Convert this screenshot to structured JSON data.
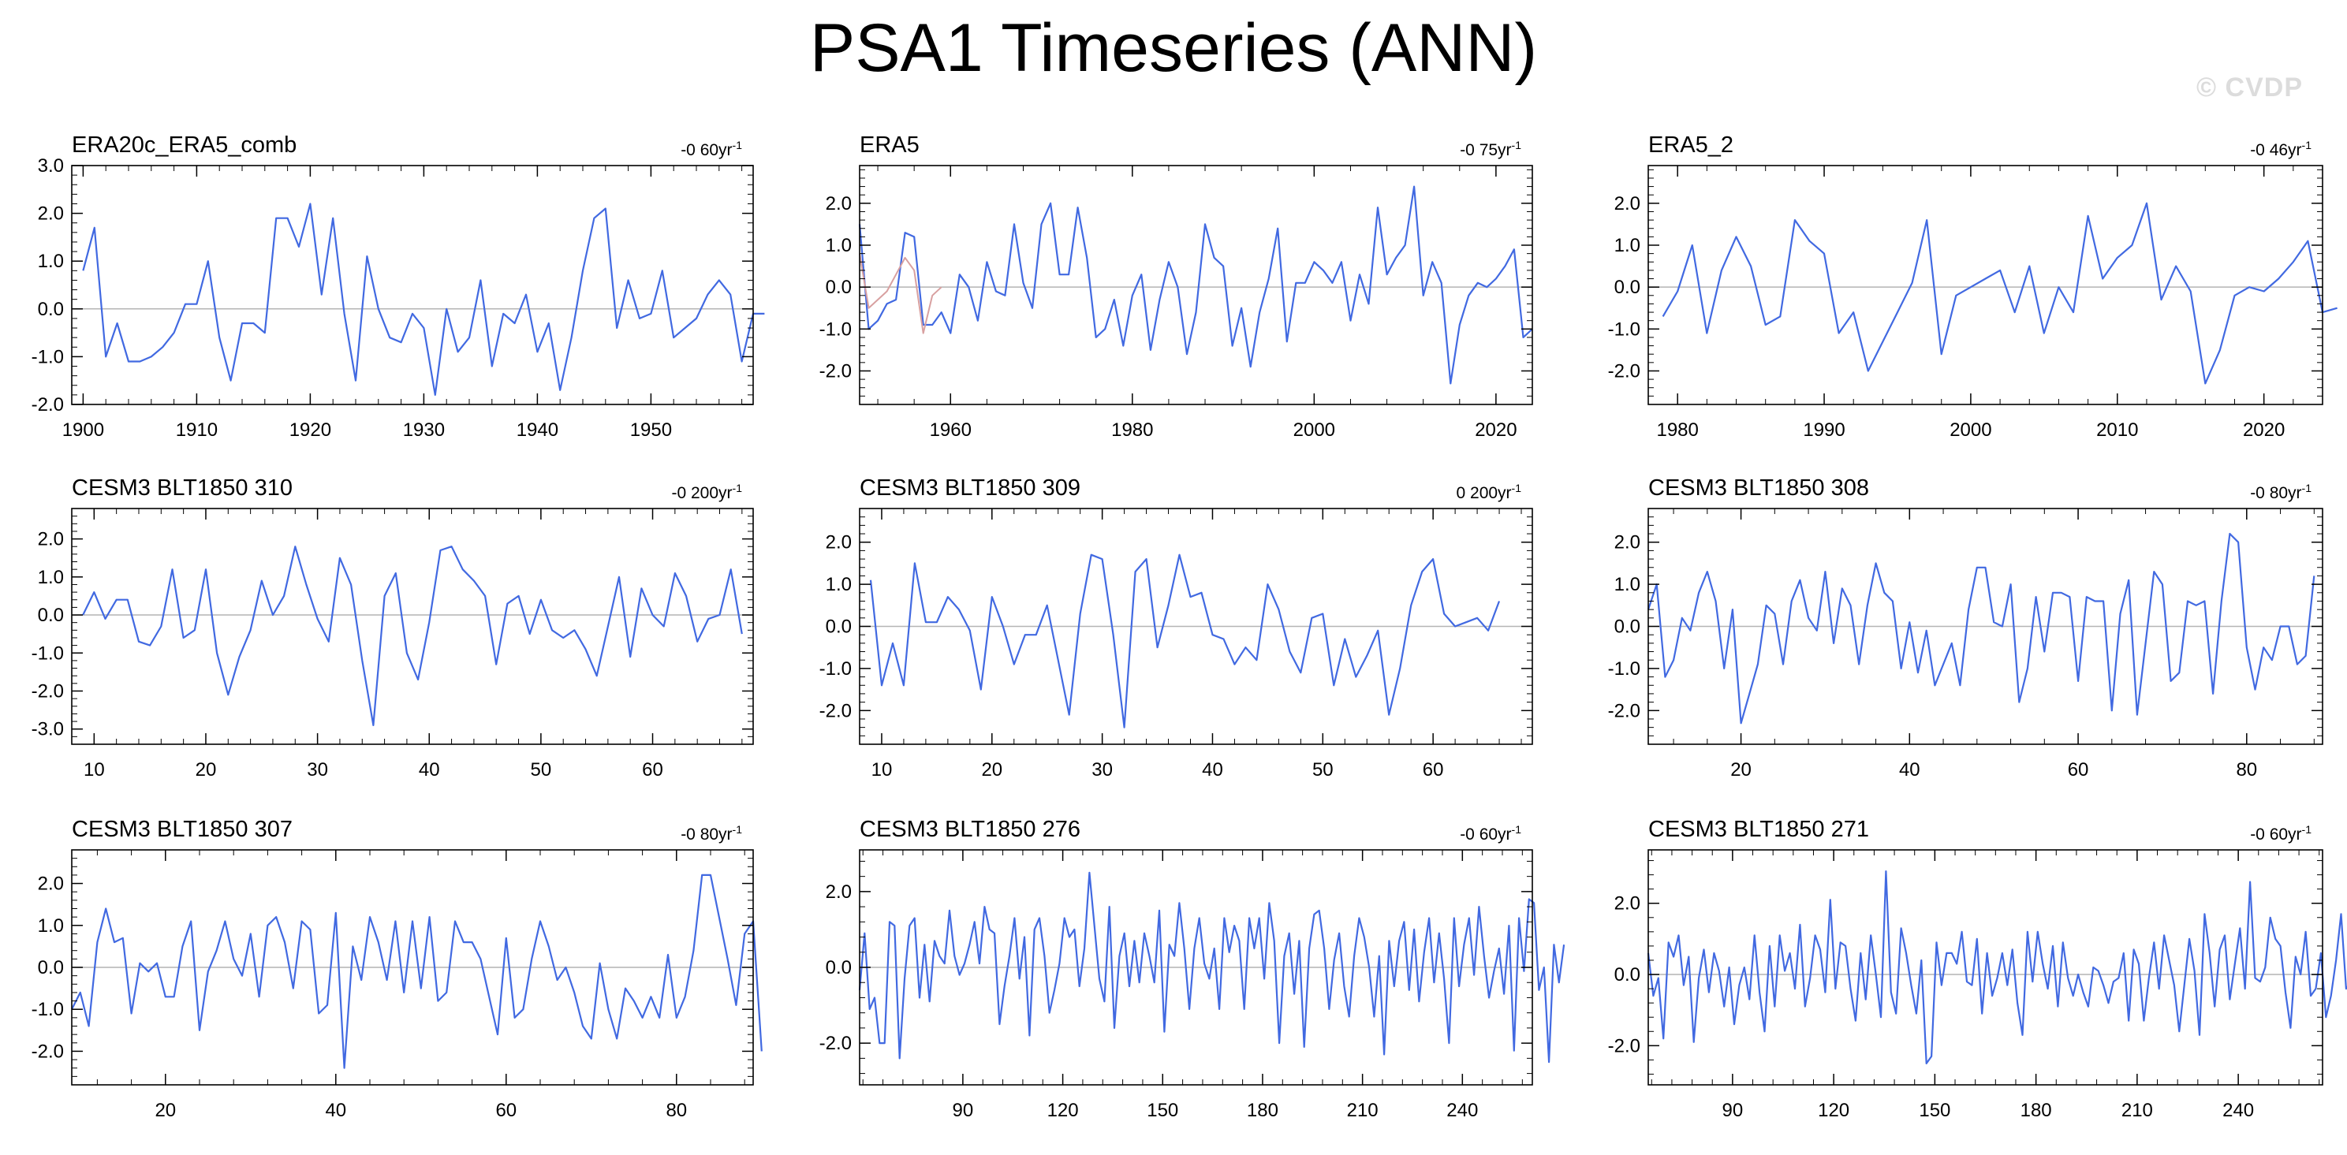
{
  "title": "PSA1 Timeseries (ANN)",
  "watermark": "© CVDP",
  "colors": {
    "series": "#4169e1",
    "observed_alt": "#d8a0a0",
    "zero_line": "#b4b4b4",
    "frame": "#000000"
  },
  "chart_data": [
    {
      "type": "line",
      "title": "ERA20c_ERA5_comb",
      "trend_value": "-0 60yr",
      "trend_exp": "-1",
      "xlim": [
        1899,
        1959
      ],
      "ylim": [
        -2.0,
        3.0
      ],
      "xticks": [
        1900,
        1910,
        1920,
        1930,
        1940,
        1950
      ],
      "yticks": [
        -2.0,
        -1.0,
        0.0,
        1.0,
        2.0,
        3.0
      ],
      "series": [
        {
          "name": "PSA1",
          "x_start": 1900,
          "x_step": 1,
          "values": [
            0.8,
            1.7,
            -1.0,
            -0.3,
            -1.1,
            -1.1,
            -1.0,
            -0.8,
            -0.5,
            0.1,
            0.1,
            1.0,
            -0.6,
            -1.5,
            -0.3,
            -0.3,
            -0.5,
            1.9,
            1.9,
            1.3,
            2.2,
            0.3,
            1.9,
            -0.1,
            -1.5,
            1.1,
            0.0,
            -0.6,
            -0.7,
            -0.1,
            -0.4,
            -1.8,
            0.0,
            -0.9,
            -0.6,
            0.6,
            -1.2,
            -0.1,
            -0.3,
            0.3,
            -0.9,
            -0.3,
            -1.7,
            -0.6,
            0.8,
            1.9,
            2.1,
            -0.4,
            0.6,
            -0.2,
            -0.1,
            0.8,
            -0.6,
            -0.4,
            -0.2,
            0.3,
            0.6,
            0.3,
            -1.1,
            -0.1,
            -0.1
          ]
        }
      ]
    },
    {
      "type": "line",
      "title": "ERA5",
      "trend_value": "-0 75yr",
      "trend_exp": "-1",
      "xlim": [
        1950,
        2024
      ],
      "ylim": [
        -2.8,
        2.9
      ],
      "xticks": [
        1960,
        1980,
        2000,
        2020
      ],
      "yticks": [
        -2.0,
        -1.0,
        0.0,
        1.0,
        2.0
      ],
      "series": [
        {
          "name": "PSA1",
          "x_start": 1950,
          "x_step": 1,
          "values": [
            1.5,
            -1.0,
            -0.8,
            -0.4,
            -0.3,
            1.3,
            1.2,
            -0.9,
            -0.9,
            -0.6,
            -1.1,
            0.3,
            0.0,
            -0.8,
            0.6,
            -0.1,
            -0.2,
            1.5,
            0.1,
            -0.5,
            1.5,
            2.0,
            0.3,
            0.3,
            1.9,
            0.7,
            -1.2,
            -1.0,
            -0.3,
            -1.4,
            -0.2,
            0.3,
            -1.5,
            -0.3,
            0.6,
            0.0,
            -1.6,
            -0.6,
            1.5,
            0.7,
            0.5,
            -1.4,
            -0.5,
            -1.9,
            -0.6,
            0.2,
            1.4,
            -1.3,
            0.1,
            0.1,
            0.6,
            0.4,
            0.1,
            0.6,
            -0.8,
            0.3,
            -0.4,
            1.9,
            0.3,
            0.7,
            1.0,
            2.4,
            -0.2,
            0.6,
            0.1,
            -2.3,
            -0.9,
            -0.2,
            0.1,
            0.0,
            0.2,
            0.5,
            0.9,
            -1.2,
            -1.0
          ]
        },
        {
          "name": "alt",
          "x_start": 1950,
          "x_step": 1,
          "values": [
            0.8,
            -0.5,
            -0.3,
            -0.1,
            0.3,
            0.7,
            0.4,
            -1.1,
            -0.2,
            0.0
          ]
        }
      ]
    },
    {
      "type": "line",
      "title": "ERA5_2",
      "trend_value": "-0 46yr",
      "trend_exp": "-1",
      "xlim": [
        1978,
        2024
      ],
      "ylim": [
        -2.8,
        2.9
      ],
      "xticks": [
        1980,
        1990,
        2000,
        2010,
        2020
      ],
      "yticks": [
        -2.0,
        -1.0,
        0.0,
        1.0,
        2.0
      ],
      "series": [
        {
          "name": "PSA1",
          "x_start": 1979,
          "x_step": 1,
          "values": [
            -0.7,
            -0.1,
            1.0,
            -1.1,
            0.4,
            1.2,
            0.5,
            -0.9,
            -0.7,
            1.6,
            1.1,
            0.8,
            -1.1,
            -0.6,
            -2.0,
            -1.3,
            -0.6,
            0.1,
            1.6,
            -1.6,
            -0.2,
            0.0,
            0.2,
            0.4,
            -0.6,
            0.5,
            -1.1,
            0.0,
            -0.6,
            1.7,
            0.2,
            0.7,
            1.0,
            2.0,
            -0.3,
            0.5,
            -0.1,
            -2.3,
            -1.5,
            -0.2,
            0.0,
            -0.1,
            0.2,
            0.6,
            1.1,
            -0.6,
            -0.5
          ]
        }
      ]
    },
    {
      "type": "line",
      "title": "CESM3 BLT1850 310",
      "trend_value": "-0 200yr",
      "trend_exp": "-1",
      "xlim": [
        8,
        69
      ],
      "ylim": [
        -3.4,
        2.8
      ],
      "xticks": [
        10,
        20,
        30,
        40,
        50,
        60
      ],
      "yticks": [
        -3.0,
        -2.0,
        -1.0,
        0.0,
        1.0,
        2.0
      ],
      "series": [
        {
          "name": "PSA1",
          "x_start": 9,
          "x_step": 1,
          "values": [
            0.0,
            0.6,
            -0.1,
            0.4,
            0.4,
            -0.7,
            -0.8,
            -0.3,
            1.2,
            -0.6,
            -0.4,
            1.2,
            -1.0,
            -2.1,
            -1.1,
            -0.4,
            0.9,
            0.0,
            0.5,
            1.8,
            0.8,
            -0.1,
            -0.7,
            1.5,
            0.8,
            -1.2,
            -2.9,
            0.5,
            1.1,
            -1.0,
            -1.7,
            -0.2,
            1.7,
            1.8,
            1.2,
            0.9,
            0.5,
            -1.3,
            0.3,
            0.5,
            -0.5,
            0.4,
            -0.4,
            -0.6,
            -0.4,
            -0.9,
            -1.6,
            -0.3,
            1.0,
            -1.1,
            0.7,
            0.0,
            -0.3,
            1.1,
            0.5,
            -0.7,
            -0.1,
            0.0,
            1.2,
            -0.5
          ]
        }
      ]
    },
    {
      "type": "line",
      "title": "CESM3 BLT1850 309",
      "trend_value": "0 200yr",
      "trend_exp": "-1",
      "xlim": [
        8,
        69
      ],
      "ylim": [
        -2.8,
        2.8
      ],
      "xticks": [
        10,
        20,
        30,
        40,
        50,
        60
      ],
      "yticks": [
        -2.0,
        -1.0,
        0.0,
        1.0,
        2.0
      ],
      "series": [
        {
          "name": "PSA1",
          "x_start": 9,
          "x_step": 1,
          "values": [
            1.1,
            -1.4,
            -0.4,
            -1.4,
            1.5,
            0.1,
            0.1,
            0.7,
            0.4,
            -0.1,
            -1.5,
            0.7,
            0.0,
            -0.9,
            -0.2,
            -0.2,
            0.5,
            -0.8,
            -2.1,
            0.3,
            1.7,
            1.6,
            -0.2,
            -2.4,
            1.3,
            1.6,
            -0.5,
            0.5,
            1.7,
            0.7,
            0.8,
            -0.2,
            -0.3,
            -0.9,
            -0.5,
            -0.8,
            1.0,
            0.4,
            -0.6,
            -1.1,
            0.2,
            0.3,
            -1.4,
            -0.3,
            -1.2,
            -0.7,
            -0.1,
            -2.1,
            -1.0,
            0.5,
            1.3,
            1.6,
            0.3,
            0.0,
            0.1,
            0.2,
            -0.1,
            0.6
          ]
        }
      ]
    },
    {
      "type": "line",
      "title": "CESM3 BLT1850 308",
      "trend_value": "-0 80yr",
      "trend_exp": "-1",
      "xlim": [
        9,
        89
      ],
      "ylim": [
        -2.8,
        2.8
      ],
      "xticks": [
        20,
        40,
        60,
        80
      ],
      "yticks": [
        -2.0,
        -1.0,
        0.0,
        1.0,
        2.0
      ],
      "series": [
        {
          "name": "PSA1",
          "x_start": 9,
          "x_step": 1,
          "values": [
            0.4,
            1.0,
            -1.2,
            -0.8,
            0.2,
            -0.1,
            0.8,
            1.3,
            0.6,
            -1.0,
            0.4,
            -2.3,
            -1.6,
            -0.9,
            0.5,
            0.3,
            -0.9,
            0.6,
            1.1,
            0.2,
            -0.1,
            1.3,
            -0.4,
            0.9,
            0.5,
            -0.9,
            0.5,
            1.5,
            0.8,
            0.6,
            -1.0,
            0.1,
            -1.1,
            -0.1,
            -1.4,
            -0.9,
            -0.4,
            -1.4,
            0.4,
            1.4,
            1.4,
            0.1,
            0.0,
            1.0,
            -1.8,
            -1.0,
            0.7,
            -0.6,
            0.8,
            0.8,
            0.7,
            -1.3,
            0.7,
            0.6,
            0.6,
            -2.0,
            0.3,
            1.1,
            -2.1,
            -0.4,
            1.3,
            1.0,
            -1.3,
            -1.1,
            0.6,
            0.5,
            0.6,
            -1.6,
            0.6,
            2.2,
            2.0,
            -0.5,
            -1.5,
            -0.5,
            -0.8,
            0.0,
            0.0,
            -0.9,
            -0.7,
            1.2
          ]
        }
      ]
    },
    {
      "type": "line",
      "title": "CESM3 BLT1850 307",
      "trend_value": "-0 80yr",
      "trend_exp": "-1",
      "xlim": [
        9,
        89
      ],
      "ylim": [
        -2.8,
        2.8
      ],
      "xticks": [
        20,
        40,
        60,
        80
      ],
      "yticks": [
        -2.0,
        -1.0,
        0.0,
        1.0,
        2.0
      ],
      "series": [
        {
          "name": "PSA1",
          "x_start": 9,
          "x_step": 1,
          "values": [
            -1.0,
            -0.6,
            -1.4,
            0.6,
            1.4,
            0.6,
            0.7,
            -1.1,
            0.1,
            -0.1,
            0.1,
            -0.7,
            -0.7,
            0.5,
            1.1,
            -1.5,
            -0.1,
            0.4,
            1.1,
            0.2,
            -0.2,
            0.8,
            -0.7,
            1.0,
            1.2,
            0.6,
            -0.5,
            1.1,
            0.9,
            -1.1,
            -0.9,
            1.3,
            -2.4,
            0.5,
            -0.3,
            1.2,
            0.6,
            -0.3,
            1.1,
            -0.6,
            1.1,
            -0.5,
            1.2,
            -0.8,
            -0.6,
            1.1,
            0.6,
            0.6,
            0.2,
            -0.7,
            -1.6,
            0.7,
            -1.2,
            -1.0,
            0.2,
            1.1,
            0.5,
            -0.3,
            0.0,
            -0.6,
            -1.4,
            -1.7,
            0.1,
            -1.0,
            -1.7,
            -0.5,
            -0.8,
            -1.2,
            -0.7,
            -1.2,
            0.3,
            -1.2,
            -0.7,
            0.4,
            2.2,
            2.2,
            1.2,
            0.2,
            -0.9,
            0.8,
            1.1,
            -2.0
          ]
        }
      ]
    },
    {
      "type": "line",
      "title": "CESM3 BLT1850 276",
      "trend_value": "-0 60yr",
      "trend_exp": "-1",
      "xlim": [
        59,
        261
      ],
      "ylim": [
        -3.1,
        3.1
      ],
      "xticks": [
        90,
        120,
        150,
        180,
        210,
        240
      ],
      "yticks": [
        -2.0,
        0.0,
        2.0
      ],
      "series": [
        {
          "name": "PSA1",
          "x_start": 59,
          "x_step": 1.5,
          "values": [
            -0.6,
            0.9,
            -1.1,
            -0.8,
            -2.0,
            -2.0,
            1.2,
            1.1,
            -2.4,
            -0.3,
            1.1,
            1.3,
            -0.8,
            0.6,
            -0.9,
            0.7,
            0.3,
            0.1,
            1.5,
            0.3,
            -0.2,
            0.1,
            0.6,
            1.2,
            0.1,
            1.6,
            1.0,
            0.9,
            -1.5,
            -0.5,
            0.3,
            1.3,
            -0.3,
            0.8,
            -1.8,
            1.0,
            1.3,
            0.3,
            -1.2,
            -0.6,
            0.1,
            1.3,
            0.8,
            1.0,
            -0.5,
            0.5,
            2.5,
            1.1,
            -0.3,
            -0.9,
            1.6,
            -1.6,
            0.3,
            0.9,
            -0.5,
            0.7,
            -0.4,
            0.9,
            0.3,
            -0.4,
            1.5,
            -1.7,
            0.6,
            0.3,
            1.7,
            0.5,
            -1.1,
            0.5,
            1.3,
            0.1,
            -0.3,
            0.5,
            -1.1,
            1.3,
            0.4,
            1.1,
            0.7,
            -1.1,
            1.3,
            0.5,
            1.3,
            -0.3,
            1.7,
            0.7,
            -2.0,
            0.3,
            0.9,
            -0.7,
            0.7,
            -2.1,
            0.5,
            1.4,
            1.5,
            0.5,
            -1.1,
            0.2,
            0.9,
            -0.5,
            -1.3,
            0.3,
            1.3,
            0.8,
            0.0,
            -1.3,
            0.3,
            -2.3,
            0.7,
            -0.5,
            0.7,
            1.2,
            -0.6,
            1.0,
            -0.9,
            0.4,
            1.3,
            -0.4,
            0.9,
            -0.3,
            -2.0,
            1.3,
            -0.5,
            0.6,
            1.3,
            -0.2,
            1.6,
            0.3,
            -0.8,
            -0.1,
            0.5,
            -0.7,
            1.1,
            -2.2,
            1.3,
            -0.1,
            1.8,
            1.7,
            -0.6,
            0.0,
            -2.5,
            0.6,
            -0.4,
            0.6
          ]
        }
      ]
    },
    {
      "type": "line",
      "title": "CESM3 BLT1850 271",
      "trend_value": "-0 60yr",
      "trend_exp": "-1",
      "xlim": [
        65,
        265
      ],
      "ylim": [
        -3.1,
        3.5
      ],
      "xticks": [
        90,
        120,
        150,
        180,
        210,
        240
      ],
      "yticks": [
        -2.0,
        0.0,
        2.0
      ],
      "series": [
        {
          "name": "PSA1",
          "x_start": 65,
          "x_step": 1.5,
          "values": [
            0.6,
            -0.6,
            -0.1,
            -1.8,
            0.9,
            0.5,
            1.1,
            -0.3,
            0.5,
            -1.9,
            -0.1,
            0.7,
            -0.5,
            0.6,
            0.1,
            -0.9,
            0.2,
            -1.4,
            -0.3,
            0.2,
            -0.7,
            1.1,
            -0.5,
            -1.6,
            0.8,
            -0.9,
            1.1,
            0.1,
            0.6,
            -0.4,
            1.4,
            -0.9,
            -0.1,
            1.1,
            0.7,
            -0.5,
            2.1,
            -0.4,
            0.9,
            0.8,
            -0.4,
            -1.3,
            0.6,
            -0.7,
            1.1,
            0.0,
            -1.2,
            2.9,
            -0.5,
            -1.1,
            1.3,
            0.6,
            -0.3,
            -1.1,
            0.4,
            -2.5,
            -2.3,
            0.9,
            -0.3,
            0.6,
            0.6,
            0.3,
            1.2,
            -0.2,
            -0.3,
            1.0,
            -1.1,
            0.6,
            -0.6,
            -0.1,
            0.6,
            -0.3,
            0.7,
            -0.8,
            -1.7,
            1.2,
            -0.2,
            1.2,
            0.3,
            -0.4,
            0.8,
            -0.9,
            0.9,
            -0.1,
            -0.6,
            0.0,
            -0.5,
            -0.9,
            0.2,
            0.1,
            -0.3,
            -0.8,
            -0.2,
            -0.1,
            0.6,
            -1.3,
            0.7,
            0.3,
            -1.3,
            -0.1,
            0.9,
            -0.4,
            1.1,
            0.4,
            -0.3,
            -1.6,
            -0.3,
            1.0,
            0.1,
            -1.7,
            1.7,
            0.6,
            -0.9,
            0.7,
            1.1,
            -0.7,
            0.3,
            1.3,
            -0.4,
            2.6,
            -0.1,
            -0.2,
            0.2,
            1.6,
            1.0,
            0.8,
            -0.5,
            -1.5,
            0.5,
            0.0,
            1.2,
            -0.6,
            -0.4,
            0.6,
            -1.2,
            -0.6,
            0.4,
            1.7,
            -0.4,
            -0.2,
            0.9,
            1.1,
            -0.2,
            -0.8,
            -0.9,
            0.5
          ]
        }
      ]
    }
  ]
}
